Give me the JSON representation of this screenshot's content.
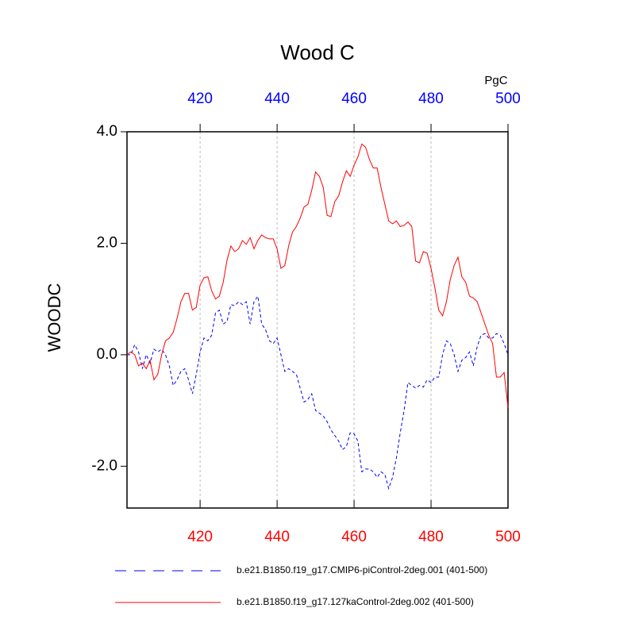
{
  "chart_data": {
    "type": "line",
    "title": "Wood C",
    "units_label": "PgC",
    "y_label": "WOODC",
    "x": [
      401,
      402,
      403,
      404,
      405,
      406,
      407,
      408,
      409,
      410,
      411,
      412,
      413,
      414,
      415,
      416,
      417,
      418,
      419,
      420,
      421,
      422,
      423,
      424,
      425,
      426,
      427,
      428,
      429,
      430,
      431,
      432,
      433,
      434,
      435,
      436,
      437,
      438,
      439,
      440,
      441,
      442,
      443,
      444,
      445,
      446,
      447,
      448,
      449,
      450,
      451,
      452,
      453,
      454,
      455,
      456,
      457,
      458,
      459,
      460,
      461,
      462,
      463,
      464,
      465,
      466,
      467,
      468,
      469,
      470,
      471,
      472,
      473,
      474,
      475,
      476,
      477,
      478,
      479,
      480,
      481,
      482,
      483,
      484,
      485,
      486,
      487,
      488,
      489,
      490,
      491,
      492,
      493,
      494,
      495,
      496,
      497,
      498,
      499,
      500
    ],
    "series": [
      {
        "name": "b.e21.B1850.f19_g17.CMIP6-piControl-2deg.001 (401-500)",
        "color": "#0000ff",
        "dash": true,
        "values": [
          0.0,
          0.0,
          0.18,
          0.05,
          -0.25,
          0.0,
          -0.15,
          0.1,
          0.05,
          0.1,
          0.0,
          -0.2,
          -0.55,
          -0.45,
          -0.3,
          -0.25,
          -0.45,
          -0.7,
          -0.35,
          0.05,
          0.3,
          0.25,
          0.35,
          0.75,
          0.8,
          0.55,
          0.6,
          0.9,
          0.88,
          0.95,
          0.9,
          0.95,
          0.55,
          0.95,
          1.05,
          0.55,
          0.45,
          0.25,
          0.2,
          0.3,
          0.0,
          -0.3,
          -0.25,
          -0.3,
          -0.35,
          -0.6,
          -0.85,
          -0.8,
          -0.7,
          -1.0,
          -1.05,
          -1.1,
          -1.2,
          -1.35,
          -1.45,
          -1.55,
          -1.7,
          -1.65,
          -1.4,
          -1.42,
          -1.55,
          -2.1,
          -2.05,
          -2.05,
          -2.1,
          -2.2,
          -2.1,
          -2.15,
          -2.4,
          -2.2,
          -1.85,
          -1.4,
          -1.0,
          -0.5,
          -0.55,
          -0.6,
          -0.55,
          -0.58,
          -0.45,
          -0.5,
          -0.4,
          -0.4,
          0.0,
          0.25,
          0.2,
          0.0,
          -0.3,
          -0.1,
          -0.05,
          0.05,
          -0.2,
          0.15,
          0.35,
          0.38,
          0.3,
          0.3,
          0.38,
          0.35,
          0.2,
          0.0
        ]
      },
      {
        "name": "b.e21.B1850.f19_g17.127kaControl-2deg.002 (401-500)",
        "color": "#ff0000",
        "dash": false,
        "values": [
          0.0,
          0.05,
          0.0,
          -0.2,
          -0.15,
          -0.25,
          -0.1,
          -0.45,
          -0.35,
          0.0,
          0.25,
          0.3,
          0.4,
          0.65,
          0.95,
          1.1,
          1.1,
          0.8,
          0.85,
          1.25,
          1.38,
          1.4,
          1.15,
          1.0,
          1.05,
          1.3,
          1.7,
          1.95,
          1.85,
          1.9,
          2.05,
          1.98,
          2.1,
          1.9,
          2.05,
          2.15,
          2.1,
          2.08,
          2.08,
          1.9,
          1.55,
          1.6,
          1.95,
          2.2,
          2.3,
          2.45,
          2.65,
          2.7,
          2.95,
          3.28,
          3.2,
          3.0,
          2.5,
          2.48,
          2.75,
          2.85,
          3.1,
          3.3,
          3.2,
          3.4,
          3.55,
          3.78,
          3.72,
          3.5,
          3.35,
          3.35,
          3.0,
          2.7,
          2.4,
          2.35,
          2.4,
          2.3,
          2.32,
          2.38,
          2.3,
          1.68,
          1.65,
          1.85,
          1.82,
          1.55,
          1.2,
          0.8,
          0.7,
          0.95,
          1.35,
          1.6,
          1.75,
          1.4,
          1.3,
          1.05,
          1.02,
          0.95,
          0.75,
          0.55,
          0.35,
          0.2,
          -0.4,
          -0.4,
          -0.32,
          -0.95
        ]
      }
    ],
    "xlim": [
      401,
      500
    ],
    "xticks": [
      420,
      440,
      460,
      480,
      500
    ],
    "ylim": [
      -2.75,
      4.0
    ],
    "yticks": [
      {
        "value": -2,
        "label": "-2.0"
      },
      {
        "value": 0,
        "label": "0.0"
      },
      {
        "value": 2,
        "label": "2.0"
      },
      {
        "value": 4,
        "label": "4.0"
      }
    ],
    "grid": true,
    "grid_color": "#bbbbbb",
    "top_tick_color": "#0000ff",
    "bottom_tick_color": "#ff0000"
  }
}
